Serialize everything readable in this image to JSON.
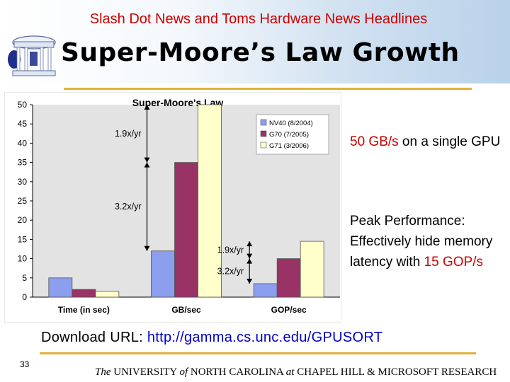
{
  "header": {
    "headline": "Slash Dot News and Toms Hardware News Headlines",
    "title": "Super-Moore’s Law Growth"
  },
  "bullets": [
    {
      "pre": "",
      "highlight": "50 GB/s",
      "post": " on a single GPU"
    },
    {
      "pre": "Peak Performance: Effectively hide memory latency with ",
      "highlight": "15 GOP/s",
      "post": ""
    }
  ],
  "download": {
    "label": "Download URL: ",
    "url": "http://gamma.cs.unc.edu/GPUSORT"
  },
  "page_number": "33",
  "footer": {
    "the": "The",
    "university": " UNIVERSITY ",
    "of": "of",
    "nc": " NORTH CAROLINA ",
    "at": "at",
    "rest": " CHAPEL HILL & MICROSOFT RESEARCH"
  },
  "colors": {
    "accent_rule": "#e2b23a",
    "highlight": "#cc0000",
    "series": [
      "#8c9eee",
      "#993366",
      "#ffffcc"
    ]
  },
  "chart_data": {
    "type": "bar",
    "title": "Super-Moore's Law",
    "categories": [
      "Time (in sec)",
      "GB/sec",
      "GOP/sec"
    ],
    "series": [
      {
        "name": "NV40 (8/2004)",
        "values": [
          5,
          12,
          3.5
        ]
      },
      {
        "name": "G70 (7/2005)",
        "values": [
          2,
          35,
          10
        ]
      },
      {
        "name": "G71 (3/2006)",
        "values": [
          1.5,
          50,
          14.5
        ]
      }
    ],
    "ylim": [
      0,
      50
    ],
    "yticks": [
      0,
      5,
      10,
      15,
      20,
      25,
      30,
      35,
      40,
      45,
      50
    ],
    "grid": false,
    "legend": "top-right",
    "annotations": [
      {
        "text": "1.9x/yr",
        "category": "GB/sec",
        "from": 35,
        "to": 50
      },
      {
        "text": "3.2x/yr",
        "category": "GB/sec",
        "from": 12,
        "to": 35
      },
      {
        "text": "1.9x/yr",
        "category": "GOP/sec",
        "from": 10,
        "to": 14.5
      },
      {
        "text": "3.2x/yr",
        "category": "GOP/sec",
        "from": 3.5,
        "to": 10
      }
    ]
  }
}
